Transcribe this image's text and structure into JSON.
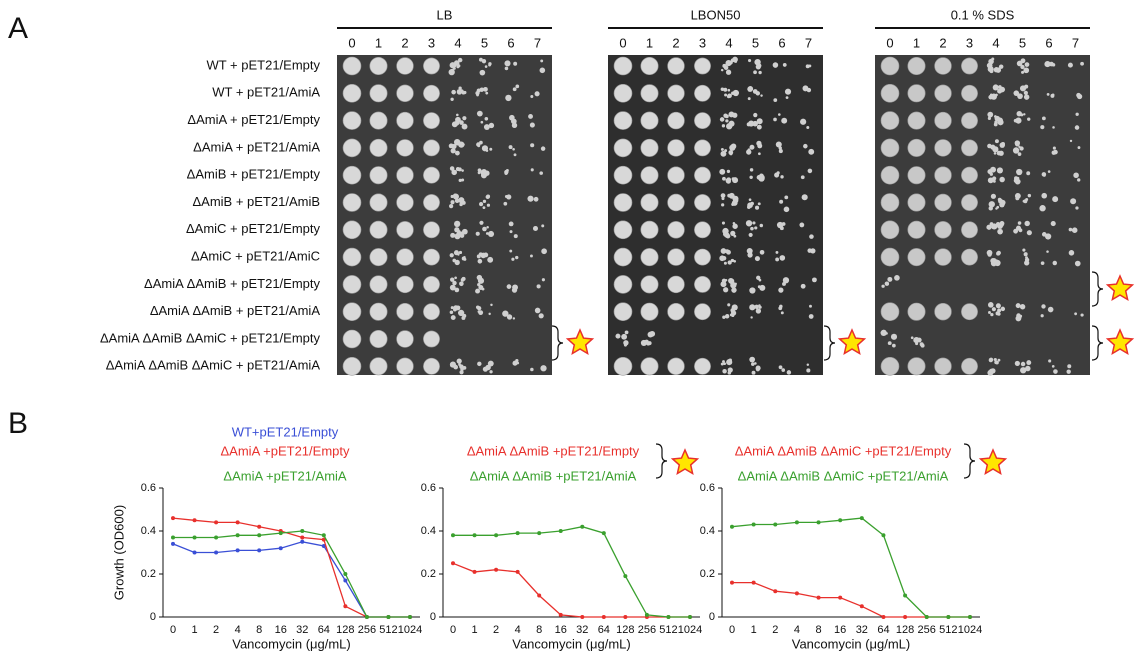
{
  "panel_a": {
    "label": "A",
    "row_labels": [
      "WT + pET21/Empty",
      "WT + pET21/AmiA",
      "ΔAmiA + pET21/Empty",
      "ΔAmiA + pET21/AmiA",
      "ΔAmiB + pET21/Empty",
      "ΔAmiB + pET21/AmiB",
      "ΔAmiC + pET21/Empty",
      "ΔAmiC + pET21/AmiC",
      "ΔAmiA ΔAmiB + pET21/Empty",
      "ΔAmiA ΔAmiB + pET21/AmiA",
      "ΔAmiA ΔAmiB ΔAmiC + pET21/Empty",
      "ΔAmiA ΔAmiB ΔAmiC + pET21/AmiA"
    ],
    "plates": [
      {
        "title": "LB",
        "dilutions": [
          "0",
          "1",
          "2",
          "3",
          "4",
          "5",
          "6",
          "7"
        ]
      },
      {
        "title": "LBON50",
        "dilutions": [
          "0",
          "1",
          "2",
          "3",
          "4",
          "5",
          "6",
          "7"
        ]
      },
      {
        "title": "0.1 % SDS",
        "dilutions": [
          "0",
          "1",
          "2",
          "3",
          "4",
          "5",
          "6",
          "7"
        ]
      }
    ]
  },
  "panel_b": {
    "label": "B"
  },
  "chart_data": [
    {
      "type": "line",
      "ylabel": "Growth (OD600)",
      "xlabel": "Vancomycin (μg/mL)",
      "categories": [
        "0",
        "1",
        "2",
        "4",
        "8",
        "16",
        "32",
        "64",
        "128",
        "256",
        "512",
        "1024"
      ],
      "ylim": [
        0,
        0.6
      ],
      "yticks": [
        0,
        0.2,
        0.4,
        0.6
      ],
      "series": [
        {
          "name": "WT+pET21/Empty",
          "color": "#3a4fd6",
          "values": [
            0.34,
            0.3,
            0.3,
            0.31,
            0.31,
            0.32,
            0.35,
            0.33,
            0.17,
            0,
            0,
            0
          ]
        },
        {
          "name": "ΔAmiA +pET21/Empty",
          "color": "#e8302c",
          "values": [
            0.46,
            0.45,
            0.44,
            0.44,
            0.42,
            0.4,
            0.37,
            0.36,
            0.05,
            0,
            0,
            0
          ]
        },
        {
          "name": "ΔAmiA +pET21/AmiA",
          "color": "#3aa02e",
          "values": [
            0.37,
            0.37,
            0.37,
            0.38,
            0.38,
            0.39,
            0.4,
            0.38,
            0.2,
            0,
            0,
            0
          ]
        }
      ]
    },
    {
      "type": "line",
      "xlabel": "Vancomycin (μg/mL)",
      "categories": [
        "0",
        "1",
        "2",
        "4",
        "8",
        "16",
        "32",
        "64",
        "128",
        "256",
        "512",
        "1024"
      ],
      "ylim": [
        0,
        0.6
      ],
      "yticks": [
        0,
        0.2,
        0.4,
        0.6
      ],
      "series": [
        {
          "name": "ΔAmiA ΔAmiB +pET21/Empty",
          "color": "#e8302c",
          "values": [
            0.25,
            0.21,
            0.22,
            0.21,
            0.1,
            0.01,
            0,
            0,
            0,
            0,
            0,
            0
          ]
        },
        {
          "name": "ΔAmiA ΔAmiB +pET21/AmiA",
          "color": "#3aa02e",
          "values": [
            0.38,
            0.38,
            0.38,
            0.39,
            0.39,
            0.4,
            0.42,
            0.39,
            0.19,
            0.01,
            0,
            0
          ]
        }
      ]
    },
    {
      "type": "line",
      "xlabel": "Vancomycin (μg/mL)",
      "categories": [
        "0",
        "1",
        "2",
        "4",
        "8",
        "16",
        "32",
        "64",
        "128",
        "256",
        "512",
        "1024"
      ],
      "ylim": [
        0,
        0.6
      ],
      "yticks": [
        0,
        0.2,
        0.4,
        0.6
      ],
      "series": [
        {
          "name": "ΔAmiA ΔAmiB ΔAmiC +pET21/Empty",
          "color": "#e8302c",
          "values": [
            0.16,
            0.16,
            0.12,
            0.11,
            0.09,
            0.09,
            0.05,
            0,
            0,
            0,
            0,
            0
          ]
        },
        {
          "name": "ΔAmiA ΔAmiB ΔAmiC +pET21/AmiA",
          "color": "#3aa02e",
          "values": [
            0.42,
            0.43,
            0.43,
            0.44,
            0.44,
            0.45,
            0.46,
            0.38,
            0.1,
            0,
            0,
            0
          ]
        }
      ]
    }
  ]
}
